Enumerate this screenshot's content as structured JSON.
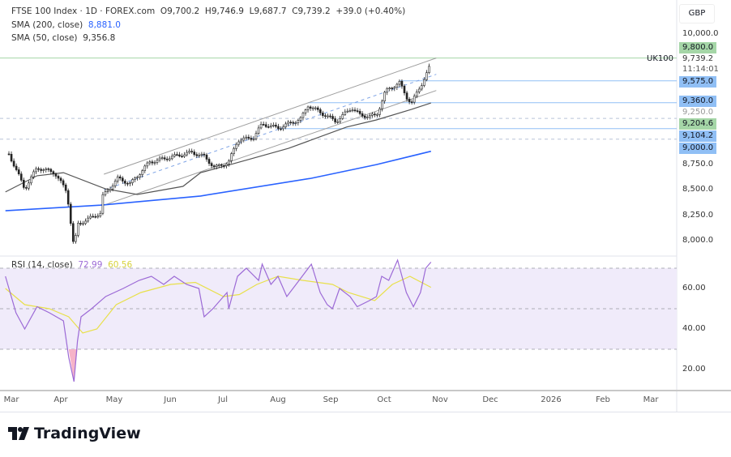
{
  "header": {
    "symbol": "FTSE 100 Index · 1D · FOREX.com",
    "open_label": "O",
    "open": "9,700.2",
    "high_label": "H",
    "high": "9,746.9",
    "low_label": "L",
    "low": "9,687.7",
    "close_label": "C",
    "close": "9,739.2",
    "change": "+39.0 (+0.40%)",
    "sma200_label": "SMA (200, close)",
    "sma200_value": "8,881.0",
    "sma50_label": "SMA (50, close)",
    "sma50_value": "9,356.8",
    "rsi_label": "RSI (14, close)",
    "rsi_value": "72.99",
    "rsi_ma_value": "60.56"
  },
  "currency": "GBP",
  "symbol_tag": "UK100",
  "last_price": "9,739.2",
  "countdown": "11:14:01",
  "price_axis": [
    "10,000.0",
    "8,750.0",
    "8,500.0",
    "8,250.0",
    "8,000.0"
  ],
  "rsi_axis": [
    "60.00",
    "40.00",
    "20.00"
  ],
  "hidden_axis_label": "9,250.0",
  "level_badges": [
    {
      "label": "9,800.0",
      "value": 9800,
      "color": "#a5d6a7",
      "style": "solid-green"
    },
    {
      "label": "9,575.0",
      "value": 9575,
      "color": "#90bff5",
      "style": "solid-blue"
    },
    {
      "label": "9,360.0",
      "value": 9360,
      "color": "#90bff5",
      "style": "solid-blue"
    },
    {
      "label": "9,204.6",
      "value": 9204.6,
      "color": "#a5d6a7",
      "style": "dashed"
    },
    {
      "label": "9,104.2",
      "value": 9104.2,
      "color": "#90bff5",
      "style": "solid-blue"
    },
    {
      "label": "9,000.0",
      "value": 9000,
      "color": "#90bff5",
      "style": "dashed"
    }
  ],
  "time_axis": [
    "Mar",
    "Apr",
    "May",
    "Jun",
    "Jul",
    "Aug",
    "Sep",
    "Oct",
    "Nov",
    "Dec",
    "2026",
    "Feb",
    "Mar"
  ],
  "brand": "TradingView",
  "colors": {
    "sma200": "#2962ff",
    "sma50": "#555555",
    "rsi": "#9c6ad6",
    "rsi_ma": "#e8e04a",
    "rsi_band": "#f0ebfa",
    "candle": "#222222",
    "channel": "#9e9e9e"
  },
  "chart_data": [
    {
      "type": "candlestick",
      "ylim": [
        7900,
        10050
      ],
      "close_keypoints": [
        [
          "2025-03-01",
          8855
        ],
        [
          "2025-03-10",
          8510
        ],
        [
          "2025-03-17",
          8720
        ],
        [
          "2025-03-27",
          8670
        ],
        [
          "2025-04-03",
          8480
        ],
        [
          "2025-04-07",
          7920
        ],
        [
          "2025-04-09",
          8160
        ],
        [
          "2025-04-22",
          8270
        ],
        [
          "2025-04-23",
          8430
        ],
        [
          "2025-05-02",
          8615
        ],
        [
          "2025-05-09",
          8560
        ],
        [
          "2025-05-20",
          8775
        ],
        [
          "2025-06-13",
          8870
        ],
        [
          "2025-06-20",
          8830
        ],
        [
          "2025-06-26",
          8720
        ],
        [
          "2025-07-04",
          8775
        ],
        [
          "2025-07-09",
          8990
        ],
        [
          "2025-07-18",
          9015
        ],
        [
          "2025-07-23",
          9150
        ],
        [
          "2025-08-01",
          9110
        ],
        [
          "2025-08-14",
          9200
        ],
        [
          "2025-08-18",
          9335
        ],
        [
          "2025-09-03",
          9175
        ],
        [
          "2025-09-12",
          9310
        ],
        [
          "2025-09-17",
          9230
        ],
        [
          "2025-09-26",
          9230
        ],
        [
          "2025-10-01",
          9470
        ],
        [
          "2025-10-09",
          9560
        ],
        [
          "2025-10-13",
          9415
        ],
        [
          "2025-10-16",
          9360
        ],
        [
          "2025-10-21",
          9520
        ],
        [
          "2025-10-27",
          9739.2
        ]
      ],
      "sma200": [
        [
          "2025-02-27",
          8295
        ],
        [
          "2025-04-22",
          8350
        ],
        [
          "2025-06-18",
          8440
        ],
        [
          "2025-08-20",
          8615
        ],
        [
          "2025-09-26",
          8750
        ],
        [
          "2025-10-27",
          8881
        ]
      ],
      "sma50": [
        [
          "2025-02-27",
          8480
        ],
        [
          "2025-03-17",
          8640
        ],
        [
          "2025-04-01",
          8670
        ],
        [
          "2025-04-25",
          8510
        ],
        [
          "2025-05-13",
          8455
        ],
        [
          "2025-06-08",
          8535
        ],
        [
          "2025-06-18",
          8670
        ],
        [
          "2025-07-05",
          8750
        ],
        [
          "2025-08-07",
          8910
        ],
        [
          "2025-09-09",
          9120
        ],
        [
          "2025-09-26",
          9190
        ],
        [
          "2025-10-16",
          9295
        ],
        [
          "2025-10-27",
          9356.8
        ]
      ],
      "channel": {
        "upper": [
          [
            "2025-04-24",
            8655
          ],
          [
            "2025-10-30",
            9800
          ]
        ],
        "middle": [
          [
            "2025-04-24",
            8500
          ],
          [
            "2025-10-30",
            9640
          ]
        ],
        "lower": [
          [
            "2025-04-24",
            8350
          ],
          [
            "2025-10-30",
            9480
          ]
        ]
      },
      "horizontal_levels": [
        {
          "value": 9800,
          "from": "start",
          "style": "solid-green"
        },
        {
          "value": 9575,
          "from": "2025-10-09",
          "style": "solid-blue"
        },
        {
          "value": 9360,
          "from": "2025-08-18",
          "style": "solid-blue"
        },
        {
          "value": 9204.6,
          "from": "start",
          "style": "dashed"
        },
        {
          "value": 9104.2,
          "from": "2025-08-01",
          "style": "solid-blue"
        },
        {
          "value": 9000,
          "from": "start",
          "style": "dashed"
        }
      ]
    },
    {
      "type": "line",
      "title": "RSI (14, close)",
      "ylim": [
        10,
        80
      ],
      "bands": [
        70,
        50,
        30
      ],
      "rsi": [
        [
          "2025-02-27",
          66
        ],
        [
          "2025-03-05",
          48
        ],
        [
          "2025-03-10",
          40
        ],
        [
          "2025-03-17",
          51
        ],
        [
          "2025-03-24",
          48
        ],
        [
          "2025-04-01",
          44
        ],
        [
          "2025-04-04",
          26
        ],
        [
          "2025-04-07",
          14
        ],
        [
          "2025-04-09",
          34
        ],
        [
          "2025-04-11",
          46
        ],
        [
          "2025-04-17",
          50
        ],
        [
          "2025-04-25",
          56
        ],
        [
          "2025-05-05",
          60
        ],
        [
          "2025-05-14",
          64
        ],
        [
          "2025-05-21",
          66
        ],
        [
          "2025-05-28",
          62
        ],
        [
          "2025-06-03",
          66
        ],
        [
          "2025-06-10",
          62
        ],
        [
          "2025-06-17",
          60
        ],
        [
          "2025-06-20",
          46
        ],
        [
          "2025-06-25",
          50
        ],
        [
          "2025-07-03",
          58
        ],
        [
          "2025-07-04",
          50
        ],
        [
          "2025-07-09",
          66
        ],
        [
          "2025-07-14",
          70
        ],
        [
          "2025-07-21",
          64
        ],
        [
          "2025-07-23",
          72
        ],
        [
          "2025-07-28",
          62
        ],
        [
          "2025-08-01",
          66
        ],
        [
          "2025-08-06",
          56
        ],
        [
          "2025-08-13",
          64
        ],
        [
          "2025-08-20",
          72
        ],
        [
          "2025-08-25",
          58
        ],
        [
          "2025-08-29",
          52
        ],
        [
          "2025-09-01",
          50
        ],
        [
          "2025-09-05",
          60
        ],
        [
          "2025-09-11",
          56
        ],
        [
          "2025-09-15",
          51
        ],
        [
          "2025-09-22",
          54
        ],
        [
          "2025-09-26",
          56
        ],
        [
          "2025-09-29",
          66
        ],
        [
          "2025-10-03",
          64
        ],
        [
          "2025-10-08",
          74
        ],
        [
          "2025-10-13",
          58
        ],
        [
          "2025-10-17",
          51
        ],
        [
          "2025-10-21",
          58
        ],
        [
          "2025-10-24",
          70
        ],
        [
          "2025-10-27",
          72.99
        ]
      ],
      "rsi_ma": [
        [
          "2025-02-27",
          60
        ],
        [
          "2025-03-10",
          52
        ],
        [
          "2025-03-24",
          50
        ],
        [
          "2025-04-04",
          46
        ],
        [
          "2025-04-12",
          38
        ],
        [
          "2025-04-20",
          40
        ],
        [
          "2025-05-01",
          52
        ],
        [
          "2025-05-15",
          58
        ],
        [
          "2025-06-01",
          62
        ],
        [
          "2025-06-15",
          63
        ],
        [
          "2025-07-01",
          56
        ],
        [
          "2025-07-10",
          57
        ],
        [
          "2025-07-20",
          62
        ],
        [
          "2025-08-01",
          66
        ],
        [
          "2025-08-15",
          64
        ],
        [
          "2025-09-01",
          62
        ],
        [
          "2025-09-10",
          58
        ],
        [
          "2025-09-25",
          54
        ],
        [
          "2025-10-05",
          62
        ],
        [
          "2025-10-15",
          66
        ],
        [
          "2025-10-27",
          60.56
        ]
      ]
    }
  ]
}
